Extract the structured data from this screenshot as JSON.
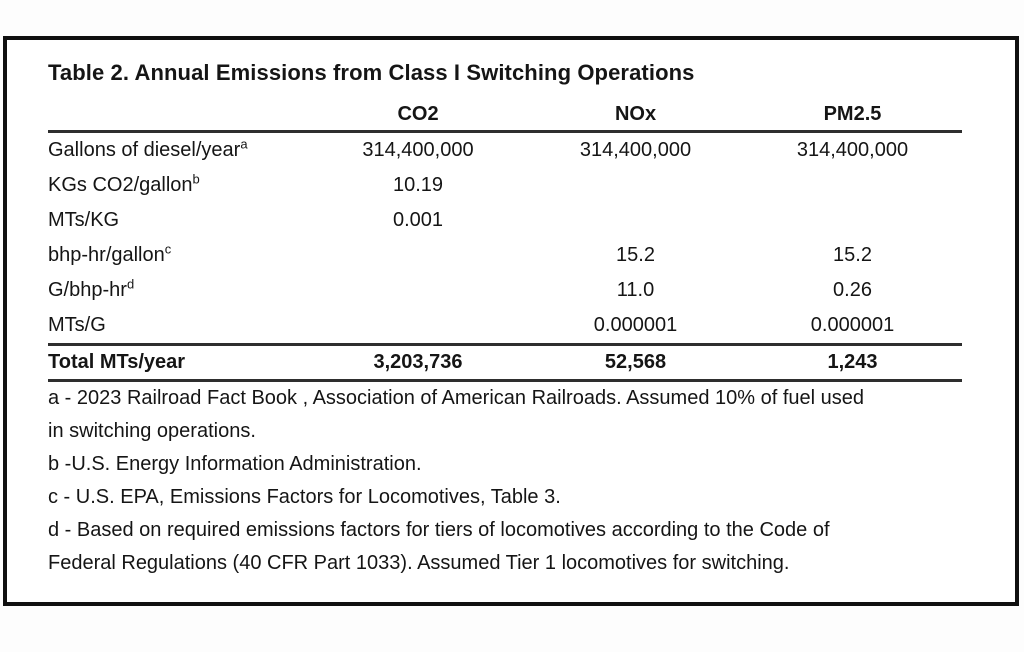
{
  "page": {
    "title": "Table 2. Annual Emissions from Class I Switching Operations"
  },
  "table": {
    "columns": [
      "CO2",
      "NOx",
      "PM2.5"
    ],
    "rows": [
      {
        "label": "Gallons of diesel/year",
        "sup": "a",
        "values": [
          "314,400,000",
          "314,400,000",
          "314,400,000"
        ]
      },
      {
        "label": "KGs CO2/gallon",
        "sup": "b",
        "values": [
          "10.19",
          "",
          ""
        ]
      },
      {
        "label": "MTs/KG",
        "sup": "",
        "values": [
          "0.001",
          "",
          ""
        ]
      },
      {
        "label": "bhp-hr/gallon",
        "sup": "c",
        "values": [
          "",
          "15.2",
          "15.2"
        ]
      },
      {
        "label": "G/bhp-hr",
        "sup": "d",
        "values": [
          "",
          "11.0",
          "0.26"
        ]
      },
      {
        "label": "MTs/G",
        "sup": "",
        "values": [
          "",
          "0.000001",
          "0.000001"
        ]
      }
    ],
    "total": {
      "label": "Total MTs/year",
      "values": [
        "3,203,736",
        "52,568",
        "1,243"
      ]
    }
  },
  "footnotes": {
    "lines": [
      "a - 2023 Railroad Fact Book , Association of American Railroads. Assumed 10% of fuel used",
      "in switching operations.",
      "b -U.S. Energy Information Administration.",
      "c - U.S. EPA, Emissions Factors for Locomotives, Table 3.",
      "d - Based on required emissions factors for tiers of locomotives according to the Code of",
      "Federal Regulations (40 CFR Part 1033). Assumed Tier 1 locomotives for switching."
    ]
  },
  "colors": {
    "text": "#151515",
    "rule": "#2e2e2e",
    "page_border": "#101010",
    "background": "#ffffff"
  }
}
